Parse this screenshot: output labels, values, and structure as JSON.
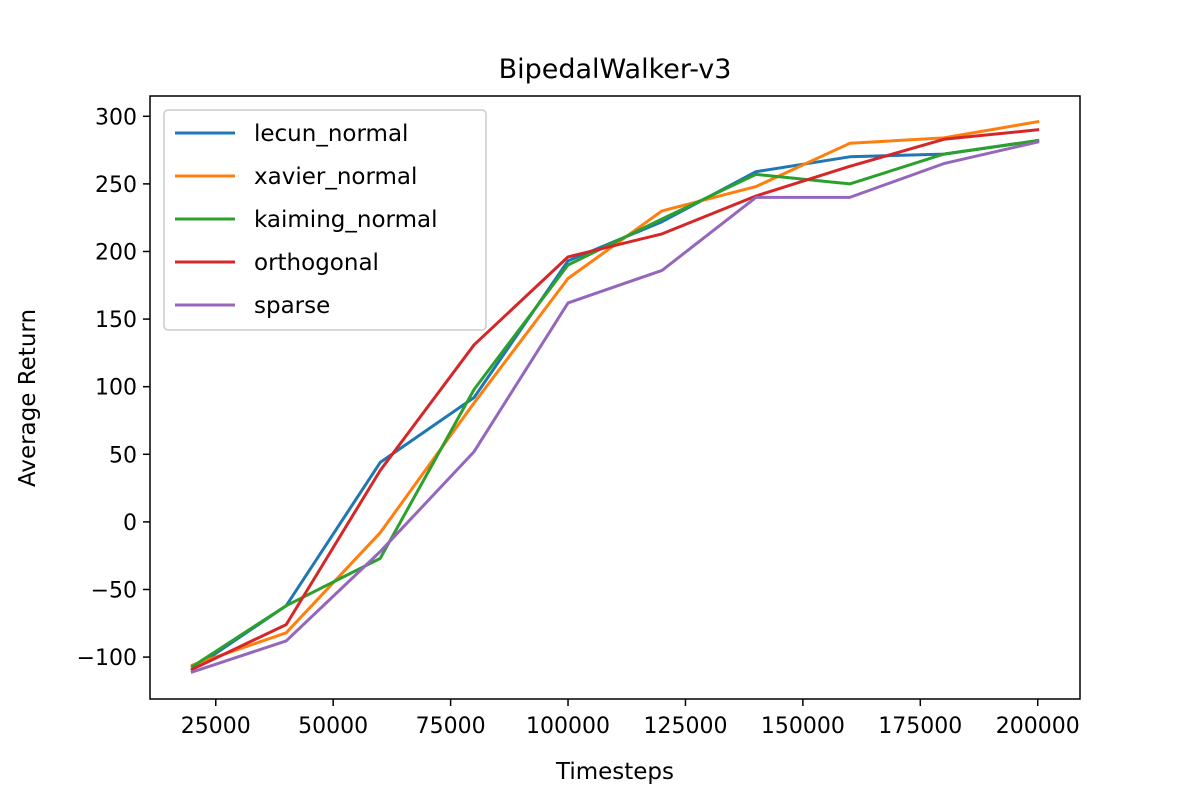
{
  "chart_data": {
    "type": "line",
    "title": "BipedalWalker-v3",
    "xlabel": "Timesteps",
    "ylabel": "Average Return",
    "x": [
      20000,
      40000,
      60000,
      80000,
      100000,
      120000,
      140000,
      160000,
      180000,
      200000
    ],
    "xlim": [
      11000,
      209000
    ],
    "ylim": [
      -131,
      315
    ],
    "xticks": [
      25000,
      50000,
      75000,
      100000,
      125000,
      150000,
      175000,
      200000
    ],
    "yticks": [
      -100,
      -50,
      0,
      50,
      100,
      150,
      200,
      250,
      300
    ],
    "xtick_labels": [
      "25000",
      "50000",
      "75000",
      "100000",
      "125000",
      "150000",
      "175000",
      "200000"
    ],
    "ytick_labels": [
      "−100",
      "−50",
      "0",
      "50",
      "100",
      "150",
      "200",
      "250",
      "300"
    ],
    "grid": false,
    "legend_position": "upper-left",
    "series": [
      {
        "name": "lecun_normal",
        "color": "#1f77b4",
        "values": [
          -109,
          -62,
          44,
          92,
          193,
          222,
          259,
          270,
          272,
          282
        ]
      },
      {
        "name": "xavier_normal",
        "color": "#ff7f0e",
        "values": [
          -106,
          -82,
          -8,
          88,
          180,
          230,
          248,
          280,
          284,
          296
        ]
      },
      {
        "name": "kaiming_normal",
        "color": "#2ca02c",
        "values": [
          -107,
          -62,
          -27,
          98,
          190,
          224,
          257,
          250,
          272,
          282
        ]
      },
      {
        "name": "orthogonal",
        "color": "#d62728",
        "values": [
          -109,
          -76,
          38,
          131,
          196,
          213,
          241,
          263,
          283,
          290
        ]
      },
      {
        "name": "sparse",
        "color": "#9467bd",
        "values": [
          -111,
          -88,
          -22,
          52,
          162,
          186,
          240,
          240,
          265,
          281
        ]
      }
    ]
  }
}
